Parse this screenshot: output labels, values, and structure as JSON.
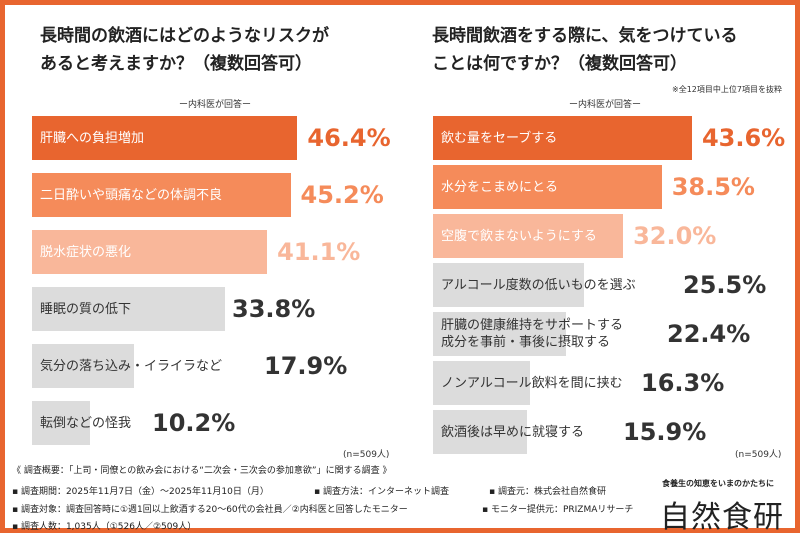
{
  "colors": {
    "border": "#e8652f",
    "dark": "#e8652f",
    "mid": "#f58b5a",
    "light": "#f9b79a",
    "gray": "#dcdcdc",
    "gray_text": "#333333"
  },
  "chart_data": [
    {
      "type": "bar",
      "orientation": "horizontal",
      "title": "長時間の飲酒にはどのようなリスクが\nあると考えますか？（複数回答可）",
      "subtitle": "ー内科医が回答ー",
      "n": "(n=509人)",
      "unit": "%",
      "categories": [
        "肝臓への負担増加",
        "二日酔いや頭痛などの体調不良",
        "脱水症状の悪化",
        "睡眠の質の低下",
        "気分の落ち込み・イライラなど",
        "転倒などの怪我"
      ],
      "values": [
        46.4,
        45.2,
        41.1,
        33.8,
        17.9,
        10.2
      ],
      "labels": [
        "46.4%",
        "45.2%",
        "41.1%",
        "33.8%",
        "17.9%",
        "10.2%"
      ],
      "bar_colors": [
        "dark",
        "mid",
        "light",
        "gray",
        "gray",
        "gray"
      ]
    },
    {
      "type": "bar",
      "orientation": "horizontal",
      "title": "長時間飲酒をする際に、気をつけている\nことは何ですか？（複数回答可）",
      "subtitle": "ー内科医が回答ー",
      "note": "※全12項目中上位7項目を抜粋",
      "n": "(n=509人)",
      "unit": "%",
      "categories": [
        "飲む量をセーブする",
        "水分をこまめにとる",
        "空腹で飲まないようにする",
        "アルコール度数の低いものを選ぶ",
        "肝臓の健康維持をサポートする\n成分を事前・事後に摂取する",
        "ノンアルコール飲料を間に挟む",
        "飲酒後は早めに就寝する"
      ],
      "values": [
        43.6,
        38.5,
        32.0,
        25.5,
        22.4,
        16.3,
        15.9
      ],
      "labels": [
        "43.6%",
        "38.5%",
        "32.0%",
        "25.5%",
        "22.4%",
        "16.3%",
        "15.9%"
      ],
      "bar_colors": [
        "dark",
        "mid",
        "light",
        "gray",
        "gray",
        "gray",
        "gray"
      ]
    }
  ],
  "footer": {
    "heading": "《 調査概要：「上司・同僚との飲み会における“二次会・三次会の参加意欲”」に関する調査 》",
    "period": "▪ 調査期間：2025年11月7日（金）〜2025年11月10日（月）",
    "method": "▪ 調査方法：インターネット調査",
    "source": "▪ 調査元：株式会社自然食研",
    "target": "▪ 調査対象：調査回答時に①週1回以上飲酒する20〜60代の会社員／②内科医と回答したモニター",
    "provider": "▪ モニター提供元：PRIZMAリサーチ",
    "count": "▪ 調査人数：1,035人（①526人／②509人）"
  },
  "logo": {
    "tagline": "食養生の知恵をいまのかたちに",
    "name": "自然食研"
  }
}
